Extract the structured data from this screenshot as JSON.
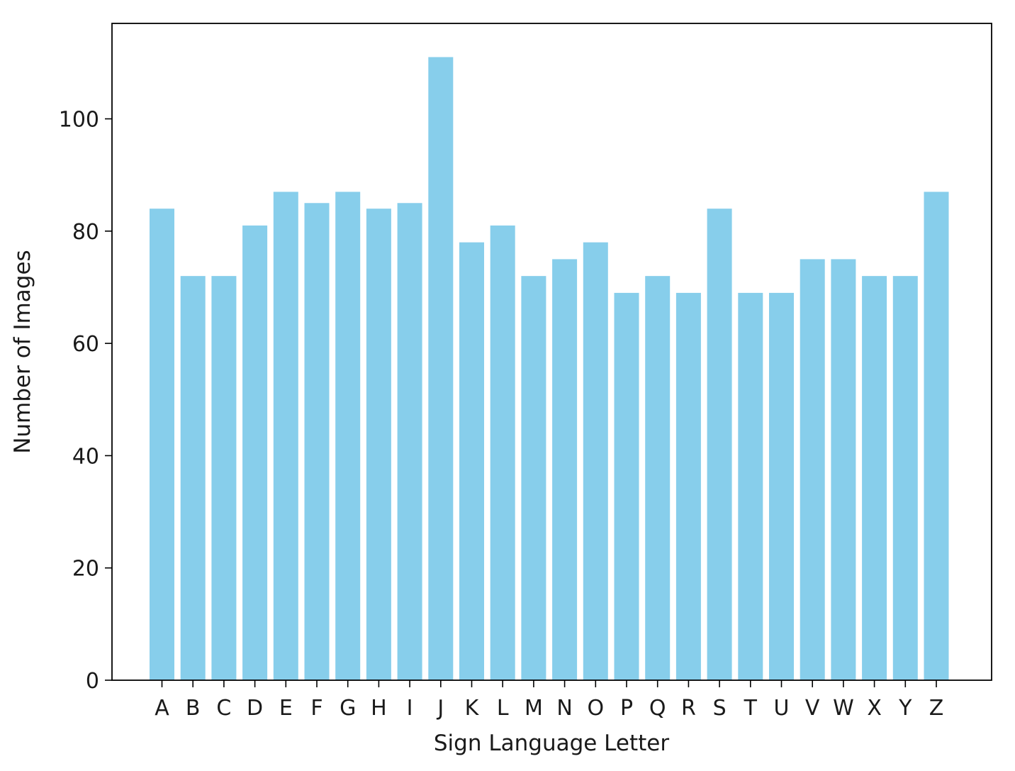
{
  "chart_data": {
    "type": "bar",
    "title": "",
    "xlabel": "Sign Language Letter",
    "ylabel": "Number of Images",
    "categories": [
      "A",
      "B",
      "C",
      "D",
      "E",
      "F",
      "G",
      "H",
      "I",
      "J",
      "K",
      "L",
      "M",
      "N",
      "O",
      "P",
      "Q",
      "R",
      "S",
      "T",
      "U",
      "V",
      "W",
      "X",
      "Y",
      "Z"
    ],
    "values": [
      84,
      72,
      72,
      81,
      87,
      85,
      87,
      84,
      85,
      111,
      78,
      81,
      72,
      75,
      78,
      69,
      72,
      69,
      84,
      69,
      69,
      75,
      75,
      72,
      72,
      87
    ],
    "ylim": [
      0,
      117
    ],
    "yticks": [
      0,
      20,
      40,
      60,
      80,
      100
    ],
    "grid": false,
    "legend": "none",
    "bar_color": "#87CEEB"
  }
}
